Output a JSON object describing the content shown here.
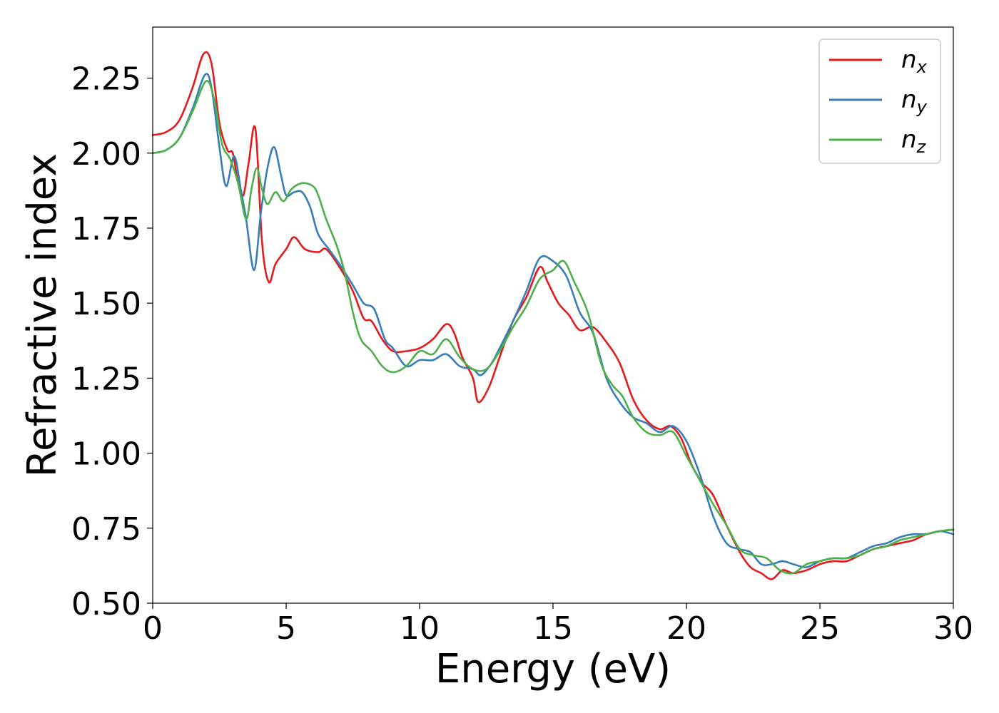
{
  "chart_data": {
    "type": "line",
    "xlabel": "Energy (eV)",
    "ylabel": "Refractive index",
    "xlim": [
      0,
      30
    ],
    "ylim": [
      0.5,
      2.42
    ],
    "xticks": [
      0,
      5,
      10,
      15,
      20,
      25,
      30
    ],
    "yticks": [
      0.5,
      0.75,
      1.0,
      1.25,
      1.5,
      1.75,
      2.0,
      2.25
    ],
    "ytick_labels": [
      "0.50",
      "0.75",
      "1.00",
      "1.25",
      "1.50",
      "1.75",
      "2.00",
      "2.25"
    ],
    "grid": false,
    "legend_position": "top-right",
    "series": [
      {
        "name": "n",
        "subscript": "x",
        "color": "#e41a1c",
        "points": [
          [
            0,
            2.06
          ],
          [
            0.5,
            2.07
          ],
          [
            1.0,
            2.11
          ],
          [
            1.5,
            2.22
          ],
          [
            1.9,
            2.33
          ],
          [
            2.2,
            2.3
          ],
          [
            2.5,
            2.1
          ],
          [
            2.8,
            2.01
          ],
          [
            3.0,
            2.0
          ],
          [
            3.2,
            1.9
          ],
          [
            3.4,
            1.86
          ],
          [
            3.6,
            1.97
          ],
          [
            3.85,
            2.08
          ],
          [
            4.1,
            1.7
          ],
          [
            4.35,
            1.57
          ],
          [
            4.6,
            1.63
          ],
          [
            5.0,
            1.68
          ],
          [
            5.3,
            1.72
          ],
          [
            5.7,
            1.68
          ],
          [
            6.2,
            1.67
          ],
          [
            6.5,
            1.68
          ],
          [
            7.0,
            1.62
          ],
          [
            7.5,
            1.54
          ],
          [
            7.9,
            1.45
          ],
          [
            8.2,
            1.44
          ],
          [
            8.6,
            1.38
          ],
          [
            9.0,
            1.34
          ],
          [
            9.5,
            1.34
          ],
          [
            10.0,
            1.35
          ],
          [
            10.5,
            1.38
          ],
          [
            11.0,
            1.43
          ],
          [
            11.3,
            1.4
          ],
          [
            11.6,
            1.32
          ],
          [
            12.0,
            1.25
          ],
          [
            12.2,
            1.17
          ],
          [
            12.6,
            1.22
          ],
          [
            13.0,
            1.32
          ],
          [
            13.5,
            1.44
          ],
          [
            14.0,
            1.52
          ],
          [
            14.5,
            1.62
          ],
          [
            14.8,
            1.57
          ],
          [
            15.2,
            1.5
          ],
          [
            15.6,
            1.46
          ],
          [
            16.0,
            1.41
          ],
          [
            16.5,
            1.42
          ],
          [
            17.0,
            1.37
          ],
          [
            17.5,
            1.3
          ],
          [
            18.0,
            1.18
          ],
          [
            18.5,
            1.11
          ],
          [
            19.0,
            1.08
          ],
          [
            19.4,
            1.09
          ],
          [
            19.8,
            1.05
          ],
          [
            20.2,
            0.96
          ],
          [
            20.6,
            0.9
          ],
          [
            21.0,
            0.86
          ],
          [
            21.5,
            0.76
          ],
          [
            22.0,
            0.67
          ],
          [
            22.4,
            0.62
          ],
          [
            22.8,
            0.6
          ],
          [
            23.2,
            0.58
          ],
          [
            23.6,
            0.61
          ],
          [
            24.0,
            0.6
          ],
          [
            24.5,
            0.61
          ],
          [
            25.0,
            0.63
          ],
          [
            25.5,
            0.64
          ],
          [
            26.0,
            0.64
          ],
          [
            26.5,
            0.66
          ],
          [
            27.0,
            0.68
          ],
          [
            27.5,
            0.69
          ],
          [
            28.0,
            0.7
          ],
          [
            28.5,
            0.71
          ],
          [
            29.0,
            0.73
          ],
          [
            29.5,
            0.74
          ],
          [
            30.0,
            0.745
          ]
        ]
      },
      {
        "name": "n",
        "subscript": "y",
        "color": "#377eb8",
        "points": [
          [
            0,
            2.0
          ],
          [
            0.5,
            2.01
          ],
          [
            1.0,
            2.05
          ],
          [
            1.5,
            2.15
          ],
          [
            1.95,
            2.26
          ],
          [
            2.2,
            2.22
          ],
          [
            2.5,
            2.02
          ],
          [
            2.75,
            1.89
          ],
          [
            3.05,
            1.99
          ],
          [
            3.3,
            1.88
          ],
          [
            3.5,
            1.78
          ],
          [
            3.8,
            1.61
          ],
          [
            4.05,
            1.8
          ],
          [
            4.3,
            1.95
          ],
          [
            4.55,
            2.02
          ],
          [
            4.8,
            1.93
          ],
          [
            5.0,
            1.86
          ],
          [
            5.3,
            1.87
          ],
          [
            5.6,
            1.87
          ],
          [
            5.9,
            1.82
          ],
          [
            6.2,
            1.73
          ],
          [
            6.6,
            1.68
          ],
          [
            7.0,
            1.63
          ],
          [
            7.5,
            1.56
          ],
          [
            7.9,
            1.5
          ],
          [
            8.3,
            1.48
          ],
          [
            8.7,
            1.38
          ],
          [
            9.0,
            1.35
          ],
          [
            9.5,
            1.29
          ],
          [
            10.0,
            1.31
          ],
          [
            10.5,
            1.31
          ],
          [
            11.0,
            1.33
          ],
          [
            11.5,
            1.29
          ],
          [
            12.0,
            1.28
          ],
          [
            12.3,
            1.26
          ],
          [
            12.7,
            1.3
          ],
          [
            13.0,
            1.35
          ],
          [
            13.5,
            1.44
          ],
          [
            14.0,
            1.54
          ],
          [
            14.5,
            1.65
          ],
          [
            15.0,
            1.64
          ],
          [
            15.5,
            1.59
          ],
          [
            16.0,
            1.47
          ],
          [
            16.5,
            1.4
          ],
          [
            17.0,
            1.25
          ],
          [
            17.5,
            1.17
          ],
          [
            18.0,
            1.12
          ],
          [
            18.5,
            1.1
          ],
          [
            19.0,
            1.07
          ],
          [
            19.5,
            1.09
          ],
          [
            20.0,
            1.04
          ],
          [
            20.5,
            0.93
          ],
          [
            21.0,
            0.79
          ],
          [
            21.5,
            0.7
          ],
          [
            22.0,
            0.68
          ],
          [
            22.4,
            0.67
          ],
          [
            22.8,
            0.63
          ],
          [
            23.2,
            0.63
          ],
          [
            23.6,
            0.64
          ],
          [
            24.0,
            0.63
          ],
          [
            24.5,
            0.62
          ],
          [
            25.0,
            0.64
          ],
          [
            25.5,
            0.65
          ],
          [
            26.0,
            0.65
          ],
          [
            26.5,
            0.67
          ],
          [
            27.0,
            0.69
          ],
          [
            27.5,
            0.7
          ],
          [
            28.0,
            0.72
          ],
          [
            28.5,
            0.73
          ],
          [
            29.0,
            0.73
          ],
          [
            29.5,
            0.74
          ],
          [
            30.0,
            0.73
          ]
        ]
      },
      {
        "name": "n",
        "subscript": "z",
        "color": "#4daf4a",
        "points": [
          [
            0,
            2.0
          ],
          [
            0.5,
            2.01
          ],
          [
            1.0,
            2.05
          ],
          [
            1.5,
            2.14
          ],
          [
            2.0,
            2.24
          ],
          [
            2.3,
            2.18
          ],
          [
            2.6,
            2.03
          ],
          [
            2.9,
            1.98
          ],
          [
            3.2,
            1.9
          ],
          [
            3.5,
            1.78
          ],
          [
            3.7,
            1.88
          ],
          [
            3.9,
            1.95
          ],
          [
            4.1,
            1.88
          ],
          [
            4.3,
            1.83
          ],
          [
            4.6,
            1.87
          ],
          [
            4.9,
            1.84
          ],
          [
            5.2,
            1.88
          ],
          [
            5.6,
            1.9
          ],
          [
            6.0,
            1.89
          ],
          [
            6.2,
            1.86
          ],
          [
            6.5,
            1.78
          ],
          [
            6.9,
            1.69
          ],
          [
            7.2,
            1.6
          ],
          [
            7.5,
            1.47
          ],
          [
            7.8,
            1.38
          ],
          [
            8.2,
            1.34
          ],
          [
            8.6,
            1.29
          ],
          [
            9.0,
            1.27
          ],
          [
            9.5,
            1.29
          ],
          [
            10.0,
            1.34
          ],
          [
            10.5,
            1.33
          ],
          [
            11.0,
            1.38
          ],
          [
            11.5,
            1.32
          ],
          [
            12.0,
            1.28
          ],
          [
            12.5,
            1.28
          ],
          [
            13.0,
            1.34
          ],
          [
            13.5,
            1.42
          ],
          [
            14.0,
            1.49
          ],
          [
            14.5,
            1.58
          ],
          [
            15.0,
            1.61
          ],
          [
            15.4,
            1.64
          ],
          [
            15.8,
            1.57
          ],
          [
            16.3,
            1.47
          ],
          [
            16.8,
            1.3
          ],
          [
            17.2,
            1.23
          ],
          [
            17.6,
            1.19
          ],
          [
            18.0,
            1.12
          ],
          [
            18.5,
            1.07
          ],
          [
            19.0,
            1.06
          ],
          [
            19.5,
            1.07
          ],
          [
            20.0,
            0.99
          ],
          [
            20.5,
            0.91
          ],
          [
            21.0,
            0.83
          ],
          [
            21.5,
            0.76
          ],
          [
            22.0,
            0.68
          ],
          [
            22.5,
            0.66
          ],
          [
            23.0,
            0.65
          ],
          [
            23.5,
            0.61
          ],
          [
            24.0,
            0.6
          ],
          [
            24.5,
            0.63
          ],
          [
            25.0,
            0.64
          ],
          [
            25.5,
            0.65
          ],
          [
            26.0,
            0.65
          ],
          [
            26.5,
            0.66
          ],
          [
            27.0,
            0.68
          ],
          [
            27.5,
            0.69
          ],
          [
            28.0,
            0.71
          ],
          [
            28.5,
            0.72
          ],
          [
            29.0,
            0.73
          ],
          [
            29.5,
            0.74
          ],
          [
            30.0,
            0.745
          ]
        ]
      }
    ]
  }
}
